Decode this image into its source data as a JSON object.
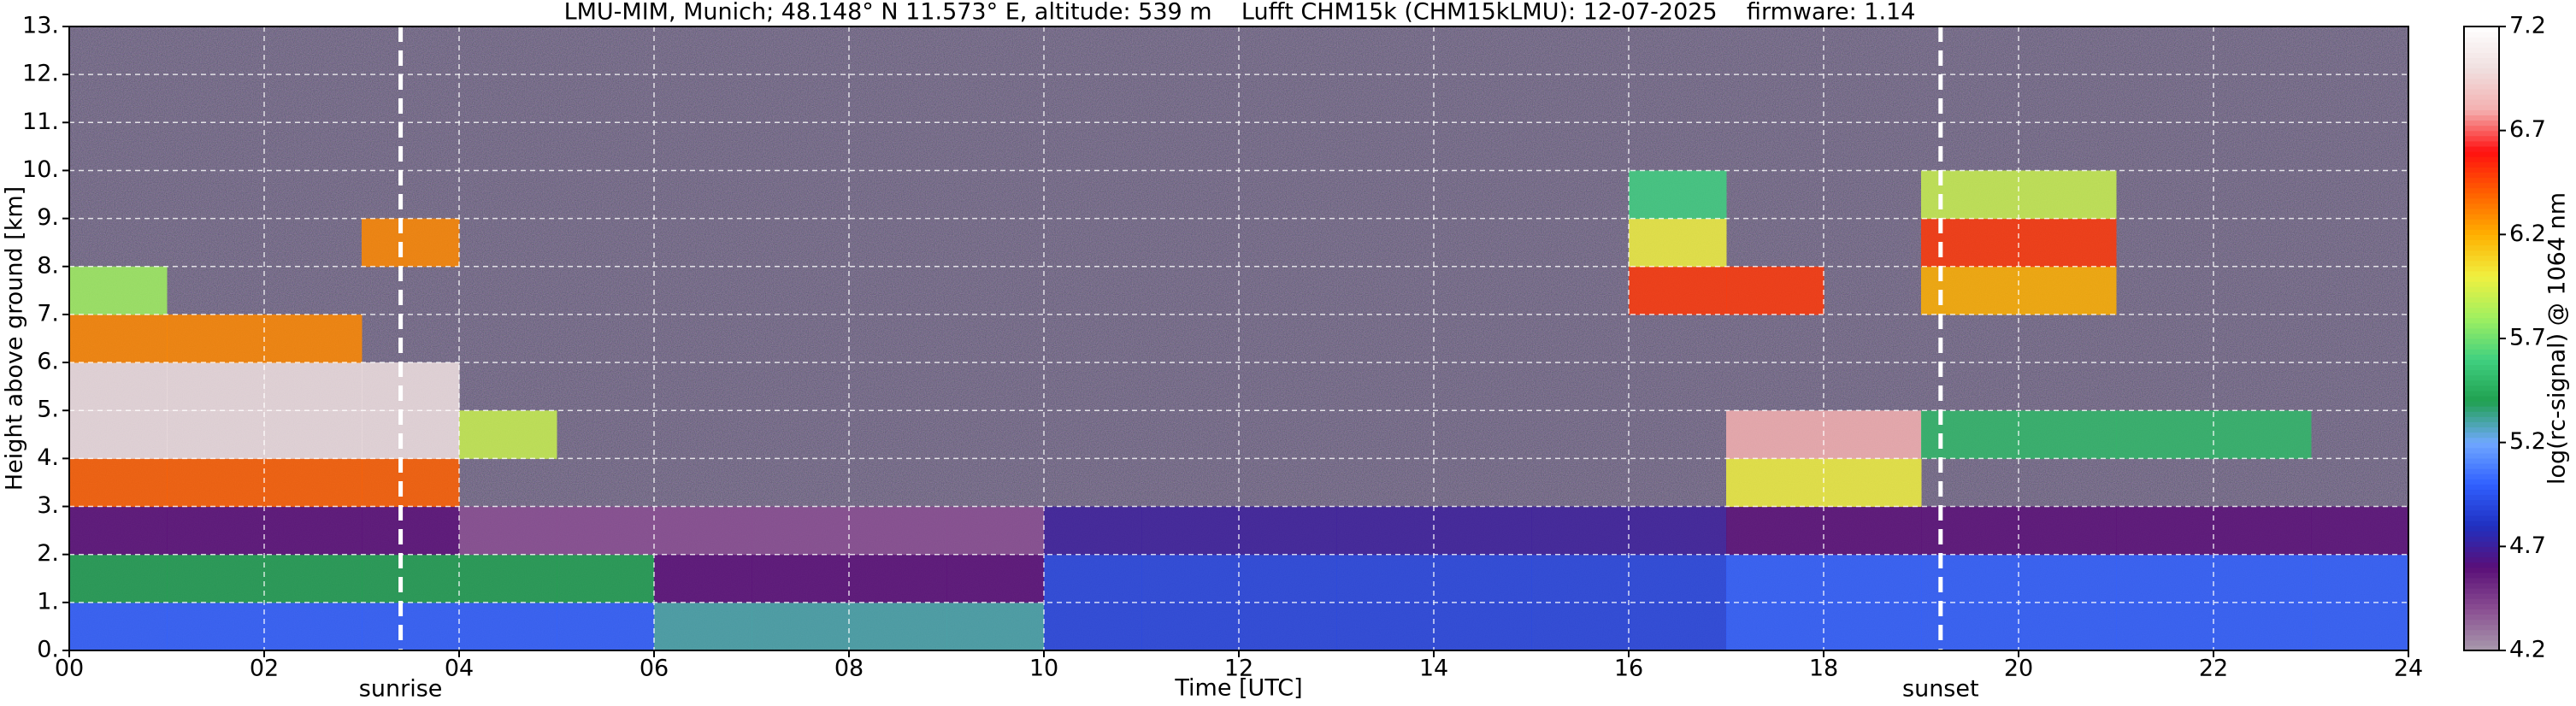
{
  "chart_data": {
    "type": "heatmap",
    "title": "LMU-MIM, Munich; 48.148° N 11.573° E, altitude: 539 m    Lufft CHM15k (CHM15kLMU): 12-07-2025    firmware: 1.14",
    "xlabel": "Time [UTC]",
    "ylabel": "Height above ground [km]",
    "xlim": [
      0,
      24
    ],
    "ylim": [
      0,
      13
    ],
    "xticks": [
      {
        "value": 0,
        "label": "00"
      },
      {
        "value": 2,
        "label": "02"
      },
      {
        "value": 4,
        "label": "04"
      },
      {
        "value": 6,
        "label": "06"
      },
      {
        "value": 8,
        "label": "08"
      },
      {
        "value": 10,
        "label": "10"
      },
      {
        "value": 12,
        "label": "12"
      },
      {
        "value": 14,
        "label": "14"
      },
      {
        "value": 16,
        "label": "16"
      },
      {
        "value": 18,
        "label": "18"
      },
      {
        "value": 20,
        "label": "20"
      },
      {
        "value": 22,
        "label": "22"
      },
      {
        "value": 24,
        "label": "24"
      }
    ],
    "yticks": [
      {
        "value": 0,
        "label": "0."
      },
      {
        "value": 1,
        "label": "1."
      },
      {
        "value": 2,
        "label": "2."
      },
      {
        "value": 3,
        "label": "3."
      },
      {
        "value": 4,
        "label": "4."
      },
      {
        "value": 5,
        "label": "5."
      },
      {
        "value": 6,
        "label": "6."
      },
      {
        "value": 7,
        "label": "7."
      },
      {
        "value": 8,
        "label": "8."
      },
      {
        "value": 9,
        "label": "9."
      },
      {
        "value": 10,
        "label": "10."
      },
      {
        "value": 11,
        "label": "11."
      },
      {
        "value": 12,
        "label": "12."
      },
      {
        "value": 13,
        "label": "13."
      }
    ],
    "grid": true,
    "x_edges": [
      0,
      1,
      2,
      3,
      4,
      5,
      6,
      7,
      8,
      9,
      10,
      11,
      12,
      13,
      14,
      15,
      16,
      17,
      18,
      19,
      20,
      21,
      22,
      23,
      24
    ],
    "y_edges": [
      0,
      1,
      2,
      3,
      4,
      5,
      6,
      7,
      8,
      9,
      10,
      11,
      12,
      13
    ],
    "z": [
      [
        5.0,
        5.0,
        5.0,
        5.0,
        5.0,
        5.0,
        5.3,
        5.3,
        5.3,
        5.3,
        4.9,
        4.9,
        4.9,
        4.9,
        4.9,
        4.9,
        4.9,
        5.0,
        5.0,
        5.0,
        5.0,
        5.0,
        5.0,
        5.0
      ],
      [
        5.4,
        5.4,
        5.4,
        5.4,
        5.4,
        5.4,
        4.6,
        4.6,
        4.6,
        4.6,
        4.9,
        4.9,
        4.9,
        4.9,
        4.9,
        4.9,
        4.9,
        5.0,
        5.0,
        5.0,
        5.0,
        5.0,
        5.0,
        5.0
      ],
      [
        4.6,
        4.6,
        4.6,
        4.6,
        4.4,
        4.4,
        4.4,
        4.4,
        4.4,
        4.4,
        4.7,
        4.7,
        4.7,
        4.7,
        4.7,
        4.7,
        4.7,
        4.6,
        4.6,
        4.6,
        4.6,
        4.6,
        4.6,
        4.6
      ],
      [
        6.4,
        6.4,
        6.4,
        6.4,
        null,
        null,
        null,
        null,
        null,
        null,
        null,
        null,
        null,
        null,
        null,
        null,
        null,
        6.0,
        6.0,
        null,
        null,
        null,
        null,
        null
      ],
      [
        7.0,
        7.0,
        7.0,
        7.0,
        5.9,
        null,
        null,
        null,
        null,
        null,
        null,
        null,
        null,
        null,
        null,
        null,
        null,
        6.8,
        6.8,
        5.5,
        5.5,
        5.5,
        5.5,
        null
      ],
      [
        7.0,
        7.0,
        7.0,
        7.0,
        null,
        null,
        null,
        null,
        null,
        null,
        null,
        null,
        null,
        null,
        null,
        null,
        null,
        null,
        null,
        null,
        null,
        null,
        null,
        null
      ],
      [
        6.3,
        6.3,
        6.3,
        null,
        null,
        null,
        null,
        null,
        null,
        null,
        null,
        null,
        null,
        null,
        null,
        null,
        null,
        null,
        null,
        null,
        null,
        null,
        null,
        null
      ],
      [
        5.8,
        null,
        null,
        null,
        null,
        null,
        null,
        null,
        null,
        null,
        null,
        null,
        null,
        null,
        null,
        null,
        6.5,
        6.5,
        null,
        6.2,
        6.2,
        null,
        null,
        null
      ],
      [
        null,
        null,
        null,
        6.3,
        null,
        null,
        null,
        null,
        null,
        null,
        null,
        null,
        null,
        null,
        null,
        null,
        6.0,
        null,
        null,
        6.5,
        6.5,
        null,
        null,
        null
      ],
      [
        null,
        null,
        null,
        null,
        null,
        null,
        null,
        null,
        null,
        null,
        null,
        null,
        null,
        null,
        null,
        null,
        5.6,
        null,
        null,
        5.9,
        5.9,
        null,
        null,
        null
      ],
      [
        null,
        null,
        null,
        null,
        null,
        null,
        null,
        null,
        null,
        null,
        null,
        null,
        null,
        null,
        null,
        null,
        null,
        null,
        null,
        null,
        null,
        null,
        null,
        null
      ],
      [
        null,
        null,
        null,
        null,
        null,
        null,
        null,
        null,
        null,
        null,
        null,
        null,
        null,
        null,
        null,
        null,
        null,
        null,
        null,
        null,
        null,
        null,
        null,
        null
      ],
      [
        null,
        null,
        null,
        null,
        null,
        null,
        null,
        null,
        null,
        null,
        null,
        null,
        null,
        null,
        null,
        null,
        null,
        null,
        null,
        null,
        null,
        null,
        null,
        null
      ]
    ],
    "colorbar": {
      "label": "log(rc-signal) @ 1064 nm",
      "zlim": [
        4.2,
        7.2
      ],
      "ticks": [
        4.2,
        4.7,
        5.2,
        5.7,
        6.2,
        6.7,
        7.2
      ],
      "colors": [
        "#a89aac",
        "#8a4e92",
        "#5a0f78",
        "#2030c0",
        "#3060ff",
        "#70a8ff",
        "#20a050",
        "#40d080",
        "#a0f060",
        "#f0f040",
        "#ffb000",
        "#ff6000",
        "#ff1010",
        "#f4b0b0",
        "#f0e0e0",
        "#ffffff"
      ]
    },
    "annotations": [
      {
        "text": "sunrise",
        "x": 3.4
      },
      {
        "text": "sunset",
        "x": 19.2
      }
    ]
  }
}
